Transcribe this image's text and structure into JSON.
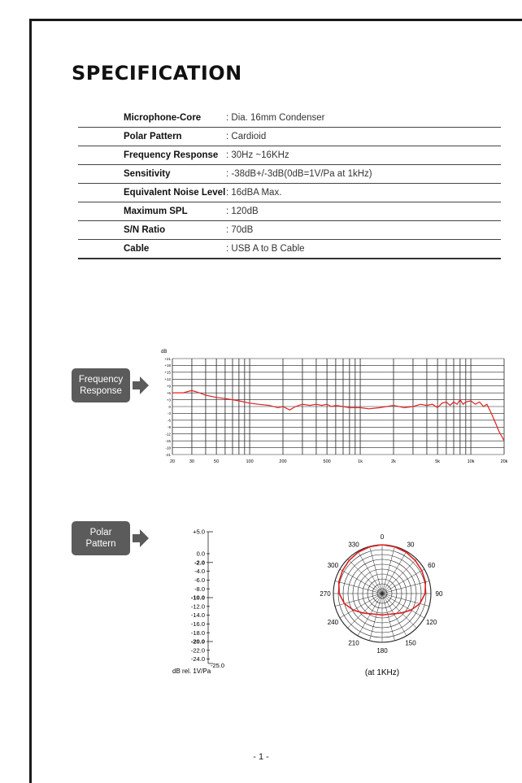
{
  "title": "SPECIFICATION",
  "specs": [
    {
      "label": "Microphone-Core",
      "value": ": Dia. 16mm Condenser"
    },
    {
      "label": "Polar Pattern",
      "value": ": Cardioid"
    },
    {
      "label": "Frequency Response",
      "value": ": 30Hz ~16KHz"
    },
    {
      "label": "Sensitivity",
      "value": ": -38dB+/-3dB(0dB=1V/Pa at 1kHz)"
    },
    {
      "label": "Equivalent Noise Level",
      "value": ": 16dBA Max."
    },
    {
      "label": "Maximum SPL",
      "value": ": 120dB"
    },
    {
      "label": "S/N Ratio",
      "value": ": 70dB"
    },
    {
      "label": "Cable",
      "value": ": USB A to B Cable"
    }
  ],
  "freq_tag": "Frequency\nResponse",
  "polar_tag": "Polar\nPattern",
  "polar_caption": "(at 1KHz)",
  "scale_caption": "dB rel. 1V/Pa",
  "page_number": "- 1 -",
  "chart_data": [
    {
      "type": "line",
      "ylabel": "dB",
      "x_scale": "log",
      "xlim": [
        20,
        20000
      ],
      "ylim": [
        -21,
        21
      ],
      "x_tick_labels": [
        "20",
        "30",
        "50",
        "100",
        "200",
        "500",
        "1k",
        "2k",
        "5k",
        "10k",
        "20k"
      ],
      "x_tick_values": [
        20,
        30,
        50,
        100,
        200,
        500,
        1000,
        2000,
        5000,
        10000,
        20000
      ],
      "y_tick_labels": [
        "+21",
        "+18",
        "+15",
        "+12",
        "+9",
        "+6",
        "+3",
        "0",
        "-3",
        "-6",
        "-9",
        "-12",
        "-15",
        "-18",
        "-21"
      ],
      "y_tick_values": [
        21,
        18,
        15,
        12,
        9,
        6,
        3,
        0,
        -3,
        -6,
        -9,
        -12,
        -15,
        -18,
        -21
      ],
      "grid": true,
      "series_color": "#e02020",
      "series": [
        {
          "x": [
            20,
            25,
            30,
            35,
            40,
            50,
            60,
            70,
            80,
            100,
            120,
            150,
            180,
            200,
            230,
            260,
            300,
            350,
            400,
            450,
            500,
            550,
            600,
            700,
            800,
            1000,
            1200,
            1500,
            2000,
            2500,
            3000,
            3500,
            4000,
            4500,
            5000,
            5500,
            6000,
            6500,
            7000,
            7500,
            8000,
            8500,
            9000,
            10000,
            11000,
            12000,
            13000,
            14000,
            15000,
            16000,
            17000,
            18000,
            19000,
            20000
          ],
          "y": [
            6,
            6,
            7,
            6,
            5,
            4,
            3.5,
            3,
            2.5,
            1.5,
            1,
            0.5,
            -0.5,
            0,
            -1.5,
            0,
            1,
            0.5,
            1,
            0.5,
            1,
            0,
            0.5,
            0,
            -0.5,
            -0.5,
            -1,
            -0.5,
            0.5,
            -0.5,
            0,
            1,
            0.5,
            1,
            -0.5,
            1.5,
            2,
            0.5,
            2,
            1,
            3,
            1,
            2,
            2.5,
            1,
            2,
            0,
            1,
            -2,
            -5,
            -8,
            -11,
            -13,
            -15
          ]
        }
      ]
    },
    {
      "type": "polar",
      "angle_labels": [
        "0",
        "30",
        "60",
        "90",
        "120",
        "150",
        "180",
        "210",
        "240",
        "270",
        "300",
        "330"
      ],
      "angles": [
        0,
        30,
        60,
        90,
        120,
        150,
        180,
        210,
        240,
        270,
        300,
        330
      ],
      "scale_labels": [
        "+5.0",
        "0.0",
        "-2.0",
        "-4.0",
        "-6.0",
        "-8.0",
        "-10.0",
        "-12.0",
        "-14.0",
        "-16.0",
        "-18.0",
        "-20.0",
        "-22.0",
        "-24.0",
        "-25.0"
      ],
      "scale_values": [
        5,
        0,
        -2,
        -4,
        -6,
        -8,
        -10,
        -12,
        -14,
        -16,
        -18,
        -20,
        -22,
        -24,
        -25
      ],
      "bold_scale_labels": [
        "-2.0",
        "-10.0",
        "-20.0"
      ],
      "series_color": "#e02020",
      "pattern_angles": [
        0,
        15,
        30,
        45,
        60,
        75,
        90,
        105,
        120,
        135,
        150,
        165,
        180,
        195,
        210,
        225,
        240,
        255,
        270,
        285,
        300,
        315,
        330,
        345
      ],
      "pattern_db": [
        0,
        -0.2,
        -0.5,
        -1,
        -1.5,
        -2,
        -3,
        -5,
        -8,
        -11,
        -13,
        -14,
        -14,
        -14,
        -13,
        -11,
        -8,
        -5,
        -3,
        -2,
        -1.5,
        -1,
        -0.5,
        -0.2
      ]
    }
  ]
}
